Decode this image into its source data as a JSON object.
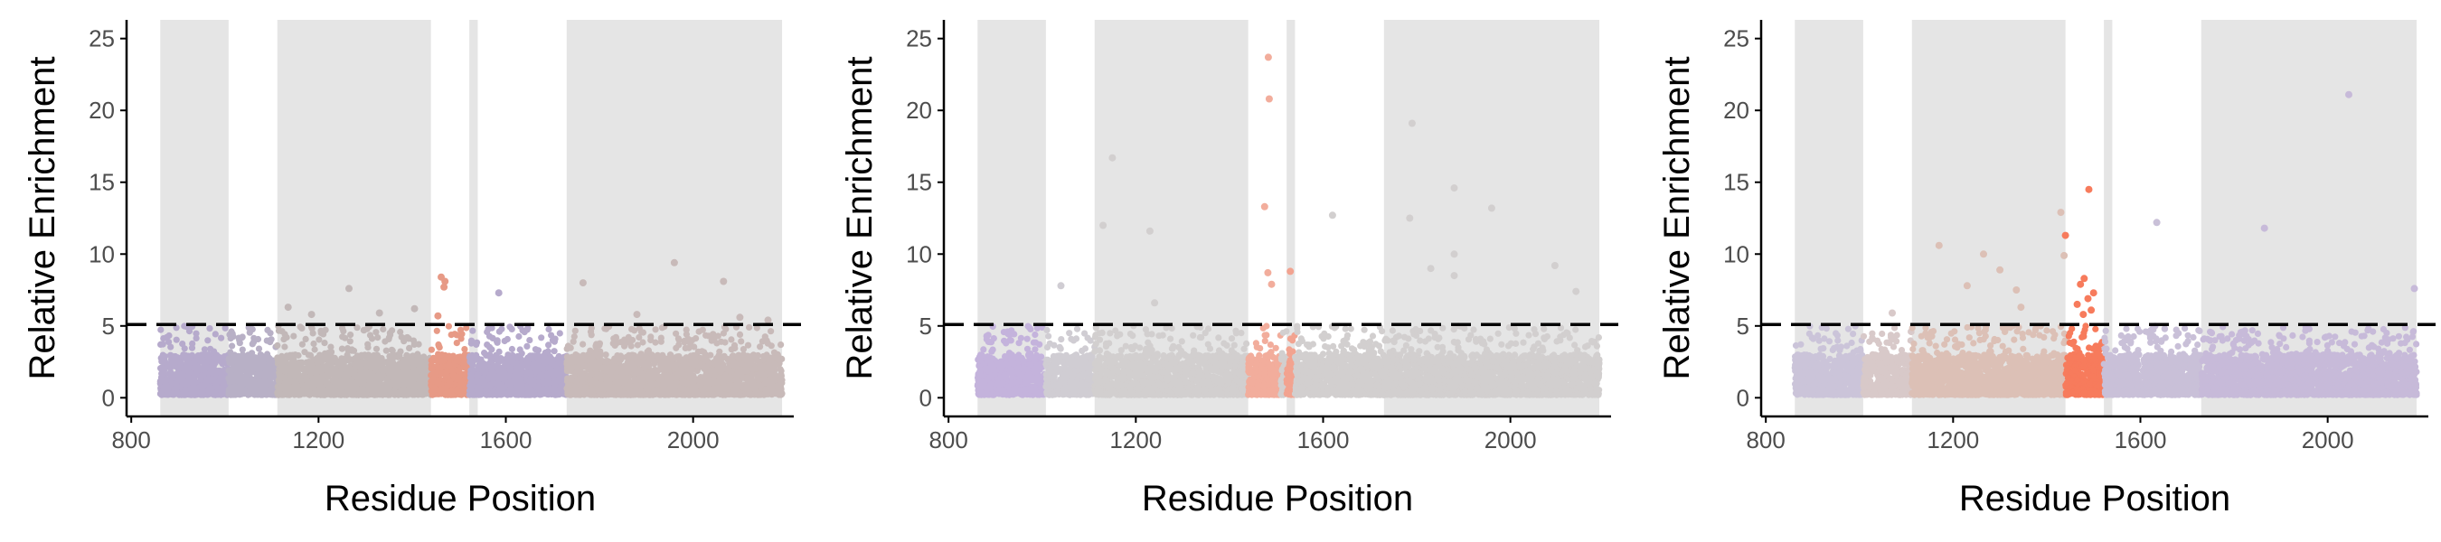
{
  "colors": {
    "shade": "#e5e5e5",
    "axis": "#000000",
    "threshold": "#000000",
    "grey_points": "#cfcfcf",
    "purple_points": "#c4b3dc",
    "salmon_points": "#f4a58f",
    "red_points": "#f77b5c"
  },
  "chart_data": [
    {
      "type": "scatter",
      "title": "",
      "xlabel": "Residue Position",
      "ylabel": "Relative Enrichment",
      "xlim": [
        790,
        2215
      ],
      "ylim": [
        -1.3,
        26.3
      ],
      "xticks": [
        "800",
        "1200",
        "1600",
        "2000"
      ],
      "yticks": [
        "0",
        "5",
        "10",
        "15",
        "20",
        "25"
      ],
      "threshold": 5.1,
      "shaded_regions": [
        [
          862,
          1008
        ],
        [
          1112,
          1440
        ],
        [
          1522,
          1540
        ],
        [
          1730,
          2190
        ]
      ],
      "segments": [
        {
          "start": 862,
          "end": 1008,
          "color": "#b6aacc"
        },
        {
          "start": 1008,
          "end": 1112,
          "color": "#b8b0c6"
        },
        {
          "start": 1112,
          "end": 1440,
          "color": "#c2b8b8"
        },
        {
          "start": 1440,
          "end": 1522,
          "color": "#e79a86"
        },
        {
          "start": 1522,
          "end": 1730,
          "color": "#b6aacc"
        },
        {
          "start": 1730,
          "end": 2190,
          "color": "#c8bab9"
        }
      ],
      "outliers": [
        {
          "x": 1462,
          "y": 8.4
        },
        {
          "x": 1470,
          "y": 8.1
        },
        {
          "x": 1468,
          "y": 7.7
        },
        {
          "x": 1585,
          "y": 7.3
        },
        {
          "x": 1265,
          "y": 7.6
        },
        {
          "x": 1960,
          "y": 9.4
        },
        {
          "x": 1765,
          "y": 8.0
        },
        {
          "x": 2065,
          "y": 8.1
        },
        {
          "x": 1135,
          "y": 6.3
        },
        {
          "x": 1185,
          "y": 5.8
        },
        {
          "x": 1330,
          "y": 5.9
        },
        {
          "x": 1405,
          "y": 6.2
        },
        {
          "x": 1455,
          "y": 5.7
        },
        {
          "x": 1880,
          "y": 5.8
        },
        {
          "x": 2100,
          "y": 5.6
        },
        {
          "x": 2160,
          "y": 5.4
        }
      ]
    },
    {
      "type": "scatter",
      "title": "",
      "xlabel": "Residue Position",
      "ylabel": "Relative Enrichment",
      "xlim": [
        790,
        2215
      ],
      "ylim": [
        -1.3,
        26.3
      ],
      "xticks": [
        "800",
        "1200",
        "1600",
        "2000"
      ],
      "yticks": [
        "0",
        "5",
        "10",
        "15",
        "20",
        "25"
      ],
      "threshold": 5.1,
      "shaded_regions": [
        [
          862,
          1008
        ],
        [
          1112,
          1440
        ],
        [
          1522,
          1540
        ],
        [
          1730,
          2190
        ]
      ],
      "segments": [
        {
          "start": 862,
          "end": 1008,
          "color": "#c4b3dc"
        },
        {
          "start": 1008,
          "end": 1112,
          "color": "#d0cdd3"
        },
        {
          "start": 1112,
          "end": 1440,
          "color": "#d2cfcf"
        },
        {
          "start": 1440,
          "end": 1510,
          "color": "#f2ad9c"
        },
        {
          "start": 1510,
          "end": 1522,
          "color": "#d2cfcf"
        },
        {
          "start": 1522,
          "end": 1540,
          "color": "#f2a390"
        },
        {
          "start": 1540,
          "end": 2190,
          "color": "#d2cfcf"
        }
      ],
      "outliers": [
        {
          "x": 1483,
          "y": 23.7
        },
        {
          "x": 1485,
          "y": 20.8
        },
        {
          "x": 1475,
          "y": 13.3
        },
        {
          "x": 1482,
          "y": 8.7
        },
        {
          "x": 1530,
          "y": 8.8
        },
        {
          "x": 1490,
          "y": 7.9
        },
        {
          "x": 1150,
          "y": 16.7
        },
        {
          "x": 1130,
          "y": 12.0
        },
        {
          "x": 1230,
          "y": 11.6
        },
        {
          "x": 1620,
          "y": 12.7
        },
        {
          "x": 1790,
          "y": 19.1
        },
        {
          "x": 1785,
          "y": 12.5
        },
        {
          "x": 1880,
          "y": 14.6
        },
        {
          "x": 1960,
          "y": 13.2
        },
        {
          "x": 1880,
          "y": 10.0
        },
        {
          "x": 1830,
          "y": 9.0
        },
        {
          "x": 2095,
          "y": 9.2
        },
        {
          "x": 1880,
          "y": 8.5
        },
        {
          "x": 2140,
          "y": 7.4
        },
        {
          "x": 1040,
          "y": 7.8
        },
        {
          "x": 1240,
          "y": 6.6
        }
      ]
    },
    {
      "type": "scatter",
      "title": "",
      "xlabel": "Residue Position",
      "ylabel": "Relative Enrichment",
      "xlim": [
        790,
        2215
      ],
      "ylim": [
        -1.3,
        26.3
      ],
      "xticks": [
        "800",
        "1200",
        "1600",
        "2000"
      ],
      "yticks": [
        "0",
        "5",
        "10",
        "15",
        "20",
        "25"
      ],
      "threshold": 5.1,
      "shaded_regions": [
        [
          862,
          1008
        ],
        [
          1112,
          1440
        ],
        [
          1522,
          1540
        ],
        [
          1730,
          2190
        ]
      ],
      "segments": [
        {
          "start": 862,
          "end": 1008,
          "color": "#cbc4d9"
        },
        {
          "start": 1008,
          "end": 1112,
          "color": "#d8c9c9"
        },
        {
          "start": 1112,
          "end": 1440,
          "color": "#dcc0b6"
        },
        {
          "start": 1440,
          "end": 1522,
          "color": "#f77b5c"
        },
        {
          "start": 1522,
          "end": 1730,
          "color": "#c9c0d8"
        },
        {
          "start": 1730,
          "end": 2190,
          "color": "#c7bad9"
        }
      ],
      "outliers": [
        {
          "x": 1490,
          "y": 14.5
        },
        {
          "x": 1480,
          "y": 8.3
        },
        {
          "x": 1472,
          "y": 7.9
        },
        {
          "x": 1500,
          "y": 7.3
        },
        {
          "x": 1488,
          "y": 6.9
        },
        {
          "x": 1465,
          "y": 6.5
        },
        {
          "x": 1495,
          "y": 6.1
        },
        {
          "x": 1478,
          "y": 5.8
        },
        {
          "x": 1430,
          "y": 12.9
        },
        {
          "x": 1440,
          "y": 11.3
        },
        {
          "x": 1437,
          "y": 9.9
        },
        {
          "x": 1635,
          "y": 12.2
        },
        {
          "x": 2045,
          "y": 21.1
        },
        {
          "x": 1865,
          "y": 11.8
        },
        {
          "x": 2185,
          "y": 7.6
        },
        {
          "x": 1170,
          "y": 10.6
        },
        {
          "x": 1265,
          "y": 10.0
        },
        {
          "x": 1300,
          "y": 8.9
        },
        {
          "x": 1230,
          "y": 7.8
        },
        {
          "x": 1335,
          "y": 7.5
        },
        {
          "x": 1070,
          "y": 5.9
        },
        {
          "x": 1345,
          "y": 6.3
        }
      ]
    }
  ]
}
